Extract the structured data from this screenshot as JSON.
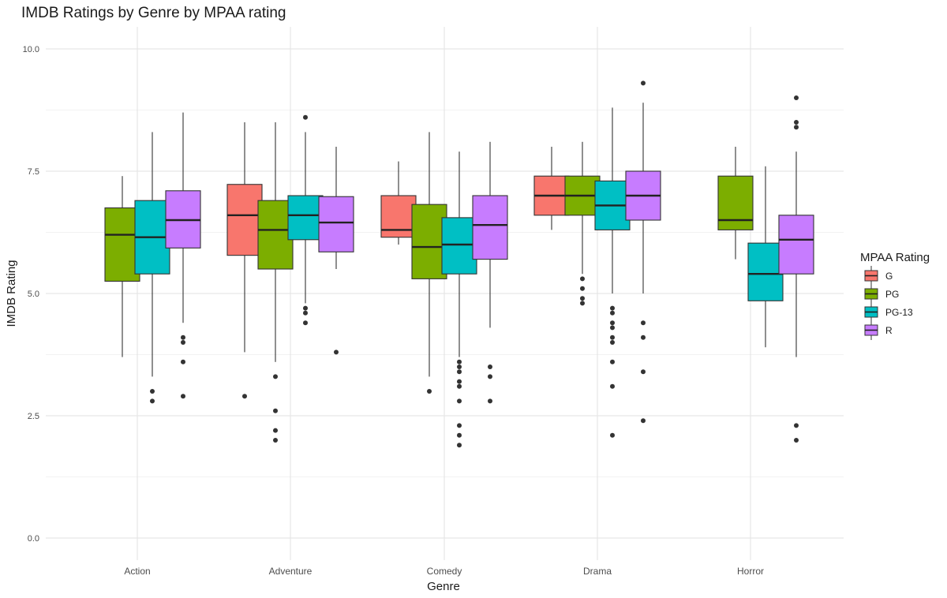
{
  "chart_data": {
    "type": "boxplot",
    "title": "IMDB Ratings by Genre by MPAA rating",
    "xlabel": "Genre",
    "ylabel": "IMDB Rating",
    "ylim": [
      0,
      10
    ],
    "yticks": [
      "0.0",
      "2.5",
      "5.0",
      "7.5",
      "10.0"
    ],
    "ytick_values": [
      0,
      2.5,
      5,
      7.5,
      10
    ],
    "categories": [
      "Action",
      "Adventure",
      "Comedy",
      "Drama",
      "Horror"
    ],
    "grid": true,
    "legend_position": "right",
    "legend": {
      "title": "MPAA Rating",
      "items": [
        {
          "label": "G",
          "color": "#F8766D"
        },
        {
          "label": "PG",
          "color": "#7CAE00"
        },
        {
          "label": "PG-13",
          "color": "#00BFC4"
        },
        {
          "label": "R",
          "color": "#C77CFF"
        }
      ]
    },
    "boxes": [
      {
        "genre": "Action",
        "rating": "PG",
        "whisker_low": 3.7,
        "q1": 5.25,
        "median": 6.2,
        "q3": 6.75,
        "whisker_high": 7.4,
        "outliers": []
      },
      {
        "genre": "Action",
        "rating": "PG-13",
        "whisker_low": 3.3,
        "q1": 5.4,
        "median": 6.15,
        "q3": 6.9,
        "whisker_high": 8.3,
        "outliers": [
          3.0,
          2.8
        ]
      },
      {
        "genre": "Action",
        "rating": "R",
        "whisker_low": 4.4,
        "q1": 5.93,
        "median": 6.5,
        "q3": 7.1,
        "whisker_high": 8.7,
        "outliers": [
          4.1,
          4.0,
          3.6,
          2.9
        ]
      },
      {
        "genre": "Adventure",
        "rating": "G",
        "whisker_low": 3.8,
        "q1": 5.78,
        "median": 6.6,
        "q3": 7.23,
        "whisker_high": 8.5,
        "outliers": [
          2.9
        ]
      },
      {
        "genre": "Adventure",
        "rating": "PG",
        "whisker_low": 3.6,
        "q1": 5.5,
        "median": 6.3,
        "q3": 6.9,
        "whisker_high": 8.5,
        "outliers": [
          3.3,
          2.6,
          2.2,
          2.0
        ]
      },
      {
        "genre": "Adventure",
        "rating": "PG-13",
        "whisker_low": 4.8,
        "q1": 6.1,
        "median": 6.6,
        "q3": 7.0,
        "whisker_high": 8.3,
        "outliers": [
          8.6,
          4.7,
          4.6,
          4.4
        ]
      },
      {
        "genre": "Adventure",
        "rating": "R",
        "whisker_low": 5.5,
        "q1": 5.85,
        "median": 6.45,
        "q3": 6.98,
        "whisker_high": 8.0,
        "outliers": [
          3.8
        ]
      },
      {
        "genre": "Comedy",
        "rating": "G",
        "whisker_low": 6.0,
        "q1": 6.15,
        "median": 6.3,
        "q3": 7.0,
        "whisker_high": 7.7,
        "outliers": []
      },
      {
        "genre": "Comedy",
        "rating": "PG",
        "whisker_low": 3.3,
        "q1": 5.3,
        "median": 5.95,
        "q3": 6.82,
        "whisker_high": 8.3,
        "outliers": [
          3.0
        ]
      },
      {
        "genre": "Comedy",
        "rating": "PG-13",
        "whisker_low": 3.7,
        "q1": 5.4,
        "median": 6.0,
        "q3": 6.55,
        "whisker_high": 7.9,
        "outliers": [
          3.6,
          3.5,
          3.4,
          3.2,
          3.1,
          2.8,
          2.3,
          2.1,
          1.9
        ]
      },
      {
        "genre": "Comedy",
        "rating": "R",
        "whisker_low": 4.3,
        "q1": 5.7,
        "median": 6.4,
        "q3": 7.0,
        "whisker_high": 8.1,
        "outliers": [
          3.5,
          3.3,
          2.8
        ]
      },
      {
        "genre": "Drama",
        "rating": "G",
        "whisker_low": 6.3,
        "q1": 6.6,
        "median": 7.0,
        "q3": 7.4,
        "whisker_high": 8.0,
        "outliers": []
      },
      {
        "genre": "Drama",
        "rating": "PG",
        "whisker_low": 5.4,
        "q1": 6.6,
        "median": 7.0,
        "q3": 7.4,
        "whisker_high": 8.1,
        "outliers": [
          5.3,
          5.1,
          4.9,
          4.8
        ]
      },
      {
        "genre": "Drama",
        "rating": "PG-13",
        "whisker_low": 5.0,
        "q1": 6.3,
        "median": 6.8,
        "q3": 7.3,
        "whisker_high": 8.8,
        "outliers": [
          4.7,
          4.6,
          4.4,
          4.3,
          4.1,
          4.0,
          3.6,
          3.1,
          2.1
        ]
      },
      {
        "genre": "Drama",
        "rating": "R",
        "whisker_low": 5.0,
        "q1": 6.5,
        "median": 7.0,
        "q3": 7.5,
        "whisker_high": 8.9,
        "outliers": [
          9.3,
          4.4,
          4.1,
          3.4,
          2.4
        ]
      },
      {
        "genre": "Horror",
        "rating": "PG",
        "whisker_low": 5.7,
        "q1": 6.3,
        "median": 6.5,
        "q3": 7.4,
        "whisker_high": 8.0,
        "outliers": []
      },
      {
        "genre": "Horror",
        "rating": "PG-13",
        "whisker_low": 3.9,
        "q1": 4.85,
        "median": 5.4,
        "q3": 6.03,
        "whisker_high": 7.6,
        "outliers": []
      },
      {
        "genre": "Horror",
        "rating": "R",
        "whisker_low": 3.7,
        "q1": 5.4,
        "median": 6.1,
        "q3": 6.6,
        "whisker_high": 7.9,
        "outliers": [
          9.0,
          8.5,
          8.4,
          2.3,
          2.0
        ]
      }
    ]
  }
}
